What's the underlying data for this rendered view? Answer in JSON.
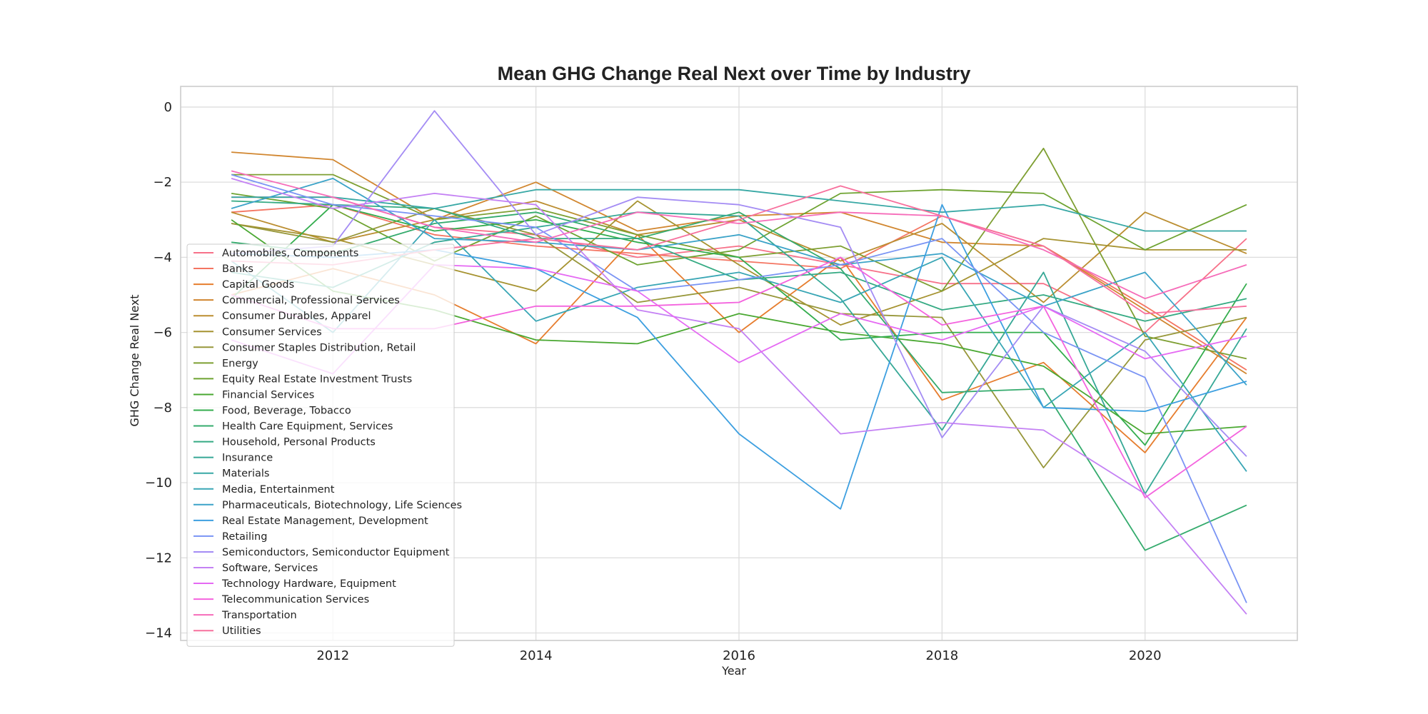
{
  "chart_data": {
    "type": "line",
    "title": "Mean GHG Change Real Next over Time by Industry",
    "xlabel": "Year",
    "ylabel": "GHG Change Real Next",
    "xlim": [
      2010.5,
      2021.5
    ],
    "ylim": [
      -14.2,
      0.55
    ],
    "x_ticks": [
      2012,
      2014,
      2016,
      2018,
      2020
    ],
    "y_ticks": [
      0,
      -2,
      -4,
      -6,
      -8,
      -10,
      -12,
      -14
    ],
    "grid": true,
    "legend_position": "lower-left",
    "x": [
      2011,
      2012,
      2013,
      2014,
      2015,
      2016,
      2017,
      2018,
      2019,
      2020,
      2021
    ],
    "series": [
      {
        "name": "Automobiles, Components",
        "color": "#f77189",
        "values": [
          -2.4,
          -2.4,
          -3.2,
          -3.4,
          -4.0,
          -3.7,
          -4.2,
          -4.7,
          -4.7,
          -6.0,
          -3.5
        ]
      },
      {
        "name": "Banks",
        "color": "#f47562",
        "values": [
          -2.8,
          -2.6,
          -3.4,
          -3.7,
          -3.9,
          -4.1,
          -4.3,
          -2.9,
          -3.7,
          -5.3,
          -7.0
        ]
      },
      {
        "name": "Capital Goods",
        "color": "#e67d2e",
        "values": [
          -5.0,
          -4.3,
          -5.0,
          -6.3,
          -3.4,
          -6.0,
          -4.0,
          -7.8,
          -6.8,
          -9.2,
          -5.6
        ]
      },
      {
        "name": "Commercial, Professional Services",
        "color": "#d1862f",
        "values": [
          -1.2,
          -1.4,
          -3.0,
          -2.0,
          -3.3,
          -2.9,
          -2.8,
          -3.6,
          -3.7,
          -5.4,
          -7.1
        ]
      },
      {
        "name": "Consumer Durables, Apparel",
        "color": "#bb8e31",
        "values": [
          -2.8,
          -3.6,
          -3.0,
          -2.5,
          -3.4,
          -3.0,
          -4.1,
          -3.1,
          -5.2,
          -2.8,
          -3.9
        ]
      },
      {
        "name": "Consumer Services",
        "color": "#a69331",
        "values": [
          -3.1,
          -3.5,
          -4.2,
          -4.9,
          -2.5,
          -4.2,
          -5.8,
          -4.9,
          -3.5,
          -3.8,
          -3.8
        ]
      },
      {
        "name": "Consumer Staples Distribution, Retail",
        "color": "#97973a",
        "values": [
          -3.1,
          -3.6,
          -2.7,
          -3.4,
          -5.2,
          -4.8,
          -5.5,
          -5.6,
          -9.6,
          -6.2,
          -5.6
        ]
      },
      {
        "name": "Energy",
        "color": "#7e9f32",
        "values": [
          -1.8,
          -1.8,
          -3.0,
          -2.7,
          -3.4,
          -4.0,
          -3.7,
          -4.9,
          -1.1,
          -6.1,
          -6.7
        ]
      },
      {
        "name": "Equity Real Estate Investment Trusts",
        "color": "#6ea331",
        "values": [
          -2.3,
          -2.7,
          -4.1,
          -2.9,
          -4.2,
          -3.8,
          -2.3,
          -2.2,
          -2.3,
          -3.8,
          -2.6
        ]
      },
      {
        "name": "Financial Services",
        "color": "#4aa832",
        "values": [
          -3.0,
          -4.9,
          -5.4,
          -6.2,
          -6.3,
          -5.5,
          -6.0,
          -6.3,
          -6.9,
          -8.7,
          -8.5
        ]
      },
      {
        "name": "Food, Beverage, Tobacco",
        "color": "#34ad4e",
        "values": [
          -5.1,
          -2.6,
          -3.3,
          -3.0,
          -3.6,
          -4.0,
          -6.2,
          -6.0,
          -6.0,
          -9.0,
          -4.7
        ]
      },
      {
        "name": "Health Care Equipment, Services",
        "color": "#34ab6d",
        "values": [
          -3.6,
          -3.9,
          -3.1,
          -2.8,
          -3.5,
          -2.8,
          -4.3,
          -7.6,
          -7.5,
          -11.8,
          -10.6
        ]
      },
      {
        "name": "Household, Personal Products",
        "color": "#35aa83",
        "values": [
          -2.5,
          -2.6,
          -2.7,
          -3.5,
          -3.5,
          -4.6,
          -4.4,
          -5.4,
          -5.0,
          -5.7,
          -5.1
        ]
      },
      {
        "name": "Insurance",
        "color": "#36a896",
        "values": [
          -4.4,
          -4.8,
          -3.6,
          -3.2,
          -2.8,
          -2.9,
          -5.1,
          -8.6,
          -4.4,
          -10.3,
          -5.9
        ]
      },
      {
        "name": "Materials",
        "color": "#38a8a5",
        "values": [
          -2.4,
          -2.4,
          -2.7,
          -2.2,
          -2.2,
          -2.2,
          -2.5,
          -2.8,
          -2.6,
          -3.3,
          -3.3
        ]
      },
      {
        "name": "Media, Entertainment",
        "color": "#39a6b5",
        "values": [
          -4.1,
          -6.0,
          -3.0,
          -5.7,
          -4.8,
          -4.4,
          -5.2,
          -4.0,
          -8.0,
          -6.0,
          -9.7
        ]
      },
      {
        "name": "Pharmaceuticals, Biotechnology, Life Sciences",
        "color": "#3ba3c8",
        "values": [
          -2.7,
          -1.9,
          -3.5,
          -3.6,
          -3.8,
          -3.4,
          -4.2,
          -3.9,
          -5.3,
          -4.4,
          -7.4
        ]
      },
      {
        "name": "Real Estate Management, Development",
        "color": "#3d9fe0",
        "values": [
          -3.9,
          -4.0,
          -3.8,
          -4.3,
          -5.6,
          -8.7,
          -10.7,
          -2.6,
          -8.0,
          -8.1,
          -7.3
        ]
      },
      {
        "name": "Retailing",
        "color": "#7a94f4",
        "values": [
          -1.8,
          -2.6,
          -2.9,
          -3.2,
          -4.9,
          -4.6,
          -4.2,
          -3.5,
          -6.0,
          -7.2,
          -13.2
        ]
      },
      {
        "name": "Semiconductors, Semiconductor Equipment",
        "color": "#a48cf4",
        "values": [
          -3.9,
          -3.7,
          -0.1,
          -3.4,
          -2.4,
          -2.6,
          -3.2,
          -8.8,
          -5.3,
          -6.5,
          -9.3
        ]
      },
      {
        "name": "Software, Services",
        "color": "#c481f4",
        "values": [
          -1.9,
          -2.7,
          -2.3,
          -2.6,
          -5.4,
          -5.9,
          -8.7,
          -8.4,
          -8.6,
          -10.3,
          -13.5
        ]
      },
      {
        "name": "Technology Hardware, Equipment",
        "color": "#e569f3",
        "values": [
          -6.2,
          -7.1,
          -4.2,
          -4.3,
          -4.9,
          -6.8,
          -5.5,
          -6.2,
          -5.3,
          -6.7,
          -6.1
        ]
      },
      {
        "name": "Telecommunication Services",
        "color": "#f463de",
        "values": [
          -5.0,
          -5.9,
          -5.9,
          -5.3,
          -5.3,
          -5.2,
          -4.0,
          -5.8,
          -5.3,
          -10.4,
          -8.5
        ]
      },
      {
        "name": "Transportation",
        "color": "#f66cb9",
        "values": [
          -1.7,
          -2.4,
          -3.2,
          -3.6,
          -2.8,
          -3.1,
          -2.8,
          -2.9,
          -3.8,
          -5.1,
          -4.2
        ]
      },
      {
        "name": "Utilities",
        "color": "#f7709d",
        "values": [
          -4.1,
          -4.2,
          -3.8,
          -3.5,
          -3.8,
          -3.0,
          -2.1,
          -2.9,
          -3.7,
          -5.5,
          -5.3
        ]
      }
    ]
  }
}
